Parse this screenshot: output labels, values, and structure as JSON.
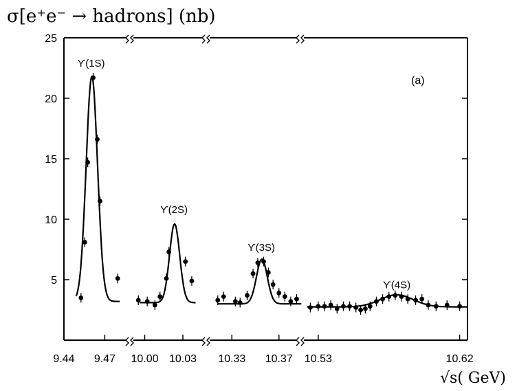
{
  "chart_data": {
    "type": "scatter",
    "ylabel": "σ[e⁺e⁻ → hadrons] (nb)",
    "xlabel": "√s( GeV)",
    "panel_label": "(a)",
    "ylim": [
      0,
      25
    ],
    "y_ticks": [
      5,
      10,
      15,
      20,
      25
    ],
    "grid": false,
    "segments": [
      {
        "xlim": [
          9.44,
          9.49
        ],
        "x_ticks": [
          9.44,
          9.47
        ]
      },
      {
        "xlim": [
          9.99,
          10.05
        ],
        "x_ticks": [
          10.0,
          10.03
        ]
      },
      {
        "xlim": [
          10.31,
          10.39
        ],
        "x_ticks": [
          10.33,
          10.37
        ]
      },
      {
        "xlim": [
          10.52,
          10.625
        ],
        "x_ticks": [
          10.53,
          10.62
        ]
      }
    ],
    "peaks": [
      {
        "label": "ϒ(1S)",
        "x": 9.46,
        "y": 22.6
      },
      {
        "label": "ϒ(2S)",
        "x": 10.023,
        "y": 10.5
      },
      {
        "label": "ϒ(3S)",
        "x": 10.355,
        "y": 7.4
      },
      {
        "label": "ϒ(4S)",
        "x": 10.58,
        "y": 4.3
      }
    ],
    "series": [
      {
        "values": [
          [
            9.4525,
            3.5
          ],
          [
            9.4553,
            8.1
          ],
          [
            9.4575,
            14.7
          ],
          [
            9.4615,
            21.7
          ],
          [
            9.4645,
            16.6
          ],
          [
            9.4665,
            11.5
          ],
          [
            9.4795,
            5.1
          ],
          [
            9.995,
            3.3
          ],
          [
            10.002,
            3.2
          ],
          [
            10.008,
            2.9
          ],
          [
            10.012,
            3.6
          ],
          [
            10.017,
            5.1
          ],
          [
            10.019,
            7.3
          ],
          [
            10.032,
            6.5
          ],
          [
            10.037,
            4.9
          ],
          [
            10.318,
            3.3
          ],
          [
            10.323,
            3.6
          ],
          [
            10.333,
            3.2
          ],
          [
            10.337,
            3.1
          ],
          [
            10.343,
            3.7
          ],
          [
            10.348,
            5.5
          ],
          [
            10.352,
            6.4
          ],
          [
            10.357,
            6.5
          ],
          [
            10.361,
            5.6
          ],
          [
            10.365,
            4.6
          ],
          [
            10.37,
            3.9
          ],
          [
            10.375,
            3.6
          ],
          [
            10.38,
            3.2
          ],
          [
            10.385,
            3.4
          ],
          [
            10.525,
            2.7
          ],
          [
            10.53,
            2.8
          ],
          [
            10.534,
            2.8
          ],
          [
            10.538,
            2.9
          ],
          [
            10.542,
            2.6
          ],
          [
            10.546,
            2.8
          ],
          [
            10.55,
            2.8
          ],
          [
            10.554,
            2.7
          ],
          [
            10.557,
            2.5
          ],
          [
            10.56,
            2.6
          ],
          [
            10.563,
            2.8
          ],
          [
            10.567,
            3.2
          ],
          [
            10.571,
            3.4
          ],
          [
            10.575,
            3.6
          ],
          [
            10.579,
            3.7
          ],
          [
            10.583,
            3.6
          ],
          [
            10.587,
            3.4
          ],
          [
            10.592,
            3.3
          ],
          [
            10.596,
            3.4
          ],
          [
            10.6,
            2.9
          ],
          [
            10.605,
            2.8
          ],
          [
            10.612,
            2.9
          ],
          [
            10.62,
            2.8
          ]
        ]
      }
    ]
  }
}
